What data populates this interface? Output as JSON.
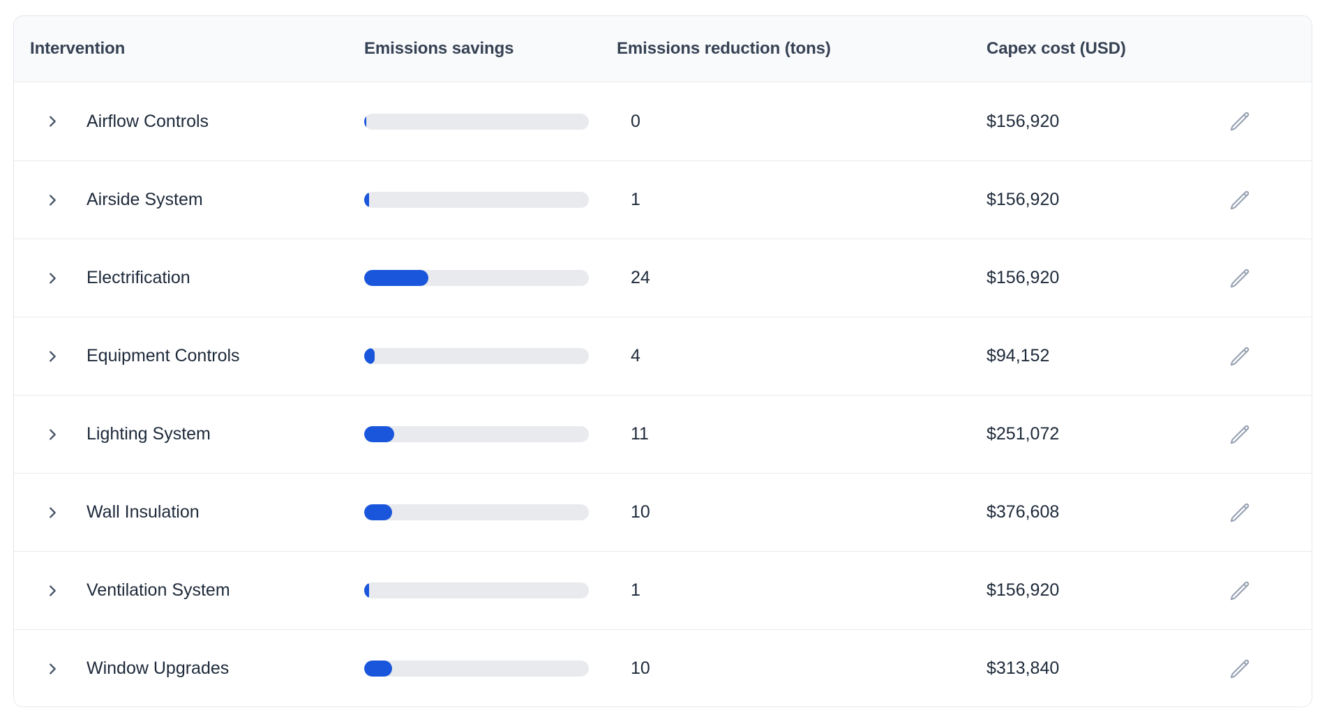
{
  "table": {
    "columns": [
      "Intervention",
      "Emissions savings",
      "Emissions reduction (tons)",
      "Capex cost (USD)"
    ],
    "rows": [
      {
        "name": "Airflow Controls",
        "bar_percent": 1.0,
        "reduction": "0",
        "capex": "$156,920"
      },
      {
        "name": "Airside System",
        "bar_percent": 2.2,
        "reduction": "1",
        "capex": "$156,920"
      },
      {
        "name": "Electrification",
        "bar_percent": 28.6,
        "reduction": "24",
        "capex": "$156,920"
      },
      {
        "name": "Equipment Controls",
        "bar_percent": 4.7,
        "reduction": "4",
        "capex": "$94,152"
      },
      {
        "name": "Lighting System",
        "bar_percent": 13.4,
        "reduction": "11",
        "capex": "$251,072"
      },
      {
        "name": "Wall Insulation",
        "bar_percent": 12.4,
        "reduction": "10",
        "capex": "$376,608"
      },
      {
        "name": "Ventilation System",
        "bar_percent": 2.2,
        "reduction": "1",
        "capex": "$156,920"
      },
      {
        "name": "Window Upgrades",
        "bar_percent": 12.4,
        "reduction": "10",
        "capex": "$313,840"
      }
    ]
  },
  "icons": {
    "expand": "chevron-right-icon",
    "edit": "pencil-icon"
  },
  "colors": {
    "bar_fill": "#1a56db",
    "bar_track": "#e8eaed",
    "header_bg": "#f8fafc",
    "header_text": "#364153",
    "body_text": "#1d2939",
    "border": "#e4e7ec",
    "pencil_icon": "#98a2b3",
    "chevron_icon": "#475467"
  }
}
